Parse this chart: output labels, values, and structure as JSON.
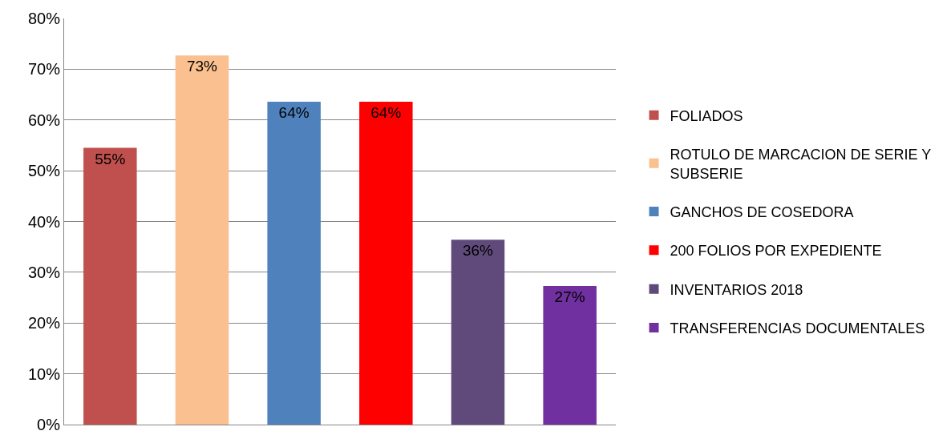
{
  "chart_data": {
    "type": "bar",
    "categories": [
      null,
      null,
      null,
      null,
      null,
      null
    ],
    "series": [
      {
        "name": "FOLIADOS",
        "color": "#c0504d",
        "values": [
          54.5,
          null,
          null,
          null,
          null,
          null
        ],
        "value_labels": [
          "55%",
          null,
          null,
          null,
          null,
          null
        ]
      },
      {
        "name": "ROTULO DE MARCACION DE SERIE Y SUBSERIE",
        "color": "#fac090",
        "values": [
          null,
          72.7,
          null,
          null,
          null,
          null
        ],
        "value_labels": [
          null,
          "73%",
          null,
          null,
          null,
          null
        ]
      },
      {
        "name": "GANCHOS DE COSEDORA",
        "color": "#4f81bd",
        "values": [
          null,
          null,
          63.6,
          null,
          null,
          null
        ],
        "value_labels": [
          null,
          null,
          "64%",
          null,
          null,
          null
        ]
      },
      {
        "name": "200 FOLIOS POR EXPEDIENTE",
        "color": "#ff0000",
        "values": [
          null,
          null,
          null,
          63.6,
          null,
          null
        ],
        "value_labels": [
          null,
          null,
          null,
          "64%",
          null,
          null
        ]
      },
      {
        "name": "INVENTARIOS 2018",
        "color": "#604a7b",
        "values": [
          null,
          null,
          null,
          null,
          36.4,
          null
        ],
        "value_labels": [
          null,
          null,
          null,
          null,
          "36%",
          null
        ]
      },
      {
        "name": "TRANSFERENCIAS DOCUMENTALES",
        "color": "#7030a0",
        "values": [
          null,
          null,
          null,
          null,
          null,
          27.3
        ],
        "value_labels": [
          null,
          null,
          null,
          null,
          null,
          "27%"
        ]
      }
    ],
    "ylim": [
      0,
      80
    ],
    "yticks": [
      {
        "value": 0,
        "label": "0%"
      },
      {
        "value": 10,
        "label": "10%"
      },
      {
        "value": 20,
        "label": "20%"
      },
      {
        "value": 30,
        "label": "30%"
      },
      {
        "value": 40,
        "label": "40%"
      },
      {
        "value": 50,
        "label": "50%"
      },
      {
        "value": 60,
        "label": "60%"
      },
      {
        "value": 70,
        "label": "70%"
      },
      {
        "value": 80,
        "label": "80%"
      }
    ],
    "grid": "y",
    "legend": "right"
  }
}
